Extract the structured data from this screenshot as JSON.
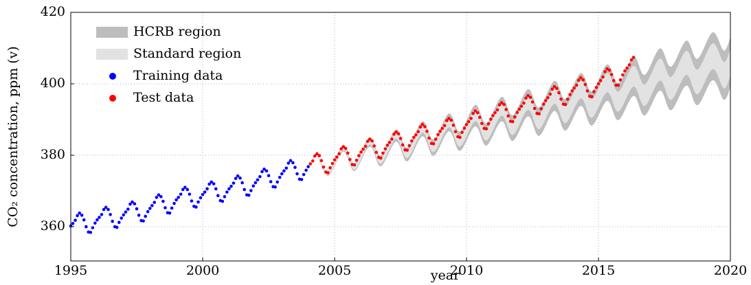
{
  "chart_data": {
    "type": "scatter",
    "xlabel": "year",
    "ylabel": "CO₂ concentration, ppm (v)",
    "xlim": [
      1995,
      2020
    ],
    "ylim": [
      350.4,
      420
    ],
    "xticks": [
      1995,
      2000,
      2005,
      2010,
      2015,
      2020
    ],
    "yticks": [
      360,
      380,
      400,
      420
    ],
    "grid": true,
    "legend": "upper left",
    "bands": [
      {
        "name": "HCRB region",
        "color": "#bdbdbd",
        "x": [
          2004.17,
          2004.33,
          2004.75,
          2005.33,
          2005.75,
          2006.33,
          2006.75,
          2007.33,
          2007.75,
          2008.33,
          2008.75,
          2009.33,
          2009.75,
          2010.33,
          2010.75,
          2011.33,
          2011.75,
          2012.33,
          2012.75,
          2013.33,
          2013.75,
          2014.33,
          2014.75,
          2015.33,
          2015.75,
          2016.33,
          2016.75,
          2017.33,
          2017.75,
          2018.33,
          2018.75,
          2019.33,
          2019.75,
          2020
        ],
        "lower": [
          377.7,
          379.7,
          374.2,
          381.0,
          375.6,
          382.4,
          376.9,
          383.8,
          378.3,
          385.3,
          379.8,
          386.7,
          381.2,
          388.1,
          382.7,
          389.5,
          384.0,
          390.9,
          385.4,
          392.4,
          386.9,
          393.8,
          388.3,
          395.2,
          389.8,
          396.6,
          391.1,
          398.1,
          392.6,
          399.5,
          394.0,
          401.0,
          395.5,
          399.0
        ],
        "upper": [
          378.5,
          380.5,
          375.4,
          382.8,
          377.6,
          385.0,
          379.9,
          387.2,
          382.1,
          389.5,
          384.4,
          391.7,
          386.6,
          394.1,
          388.9,
          396.3,
          391.2,
          398.5,
          393.4,
          400.8,
          395.7,
          403.0,
          397.9,
          405.4,
          400.2,
          407.6,
          402.5,
          409.9,
          404.8,
          412.1,
          407.0,
          414.4,
          409.3,
          413.0
        ]
      },
      {
        "name": "Standard region",
        "color": "#e2e2e2",
        "x": [
          2004.17,
          2004.33,
          2004.75,
          2005.33,
          2005.75,
          2006.33,
          2006.75,
          2007.33,
          2007.75,
          2008.33,
          2008.75,
          2009.33,
          2009.75,
          2010.33,
          2010.75,
          2011.33,
          2011.75,
          2012.33,
          2012.75,
          2013.33,
          2013.75,
          2014.33,
          2014.75,
          2015.33,
          2015.75,
          2016.33,
          2016.75,
          2017.33,
          2017.75,
          2018.33,
          2018.75,
          2019.33,
          2019.75,
          2020
        ],
        "lower": [
          377.9,
          379.8,
          374.4,
          381.4,
          376.0,
          383.0,
          377.6,
          384.6,
          379.2,
          386.3,
          380.9,
          387.8,
          382.4,
          389.5,
          384.1,
          391.1,
          385.7,
          392.7,
          387.3,
          394.4,
          389.0,
          395.9,
          390.5,
          397.6,
          392.2,
          399.2,
          393.8,
          400.9,
          395.5,
          402.5,
          397.1,
          404.1,
          398.7,
          402.3
        ],
        "upper": [
          378.3,
          380.4,
          375.2,
          382.4,
          377.2,
          384.4,
          379.2,
          386.4,
          381.2,
          388.6,
          383.4,
          390.6,
          385.4,
          392.7,
          387.5,
          394.7,
          389.5,
          396.7,
          391.5,
          398.9,
          393.7,
          400.9,
          395.7,
          403.0,
          397.8,
          405.0,
          399.8,
          407.1,
          401.9,
          409.2,
          404.0,
          411.3,
          406.1,
          409.7
        ]
      }
    ],
    "series": [
      {
        "name": "Training data",
        "color": "#0000ff",
        "x": [
          1995,
          1995.08,
          1995.17,
          1995.25,
          1995.33,
          1995.42,
          1995.5,
          1995.58,
          1995.67,
          1995.75,
          1995.83,
          1995.92,
          1996,
          1996.08,
          1996.17,
          1996.25,
          1996.33,
          1996.42,
          1996.5,
          1996.58,
          1996.67,
          1996.75,
          1996.83,
          1996.92,
          1997,
          1997.08,
          1997.17,
          1997.25,
          1997.33,
          1997.42,
          1997.5,
          1997.58,
          1997.67,
          1997.75,
          1997.83,
          1997.92,
          1998,
          1998.08,
          1998.17,
          1998.25,
          1998.33,
          1998.42,
          1998.5,
          1998.58,
          1998.67,
          1998.75,
          1998.83,
          1998.92,
          1999,
          1999.08,
          1999.17,
          1999.25,
          1999.33,
          1999.42,
          1999.5,
          1999.58,
          1999.67,
          1999.75,
          1999.83,
          1999.92,
          2000,
          2000.08,
          2000.17,
          2000.25,
          2000.33,
          2000.42,
          2000.5,
          2000.58,
          2000.67,
          2000.75,
          2000.83,
          2000.92,
          2001,
          2001.08,
          2001.17,
          2001.25,
          2001.33,
          2001.42,
          2001.5,
          2001.58,
          2001.67,
          2001.75,
          2001.83,
          2001.92,
          2002,
          2002.08,
          2002.17,
          2002.25,
          2002.33,
          2002.42,
          2002.5,
          2002.58,
          2002.67,
          2002.75,
          2002.83,
          2002.92,
          2003,
          2003.08,
          2003.17,
          2003.25,
          2003.33,
          2003.42,
          2003.5,
          2003.58,
          2003.67,
          2003.75,
          2003.83,
          2003.92,
          2004
        ],
        "values": [
          360.2,
          360.9,
          361.8,
          363.1,
          363.8,
          363.2,
          361.9,
          360.0,
          358.5,
          358.4,
          359.7,
          361.0,
          361.9,
          362.6,
          363.4,
          364.8,
          365.4,
          364.8,
          363.4,
          361.5,
          360.0,
          359.8,
          361.2,
          362.4,
          363.3,
          364.1,
          364.9,
          366.3,
          366.9,
          366.4,
          365.0,
          363.2,
          361.7,
          361.6,
          362.9,
          364.2,
          365.1,
          365.9,
          366.8,
          368.2,
          368.9,
          368.4,
          367.1,
          365.3,
          363.9,
          363.8,
          365.2,
          366.5,
          367.5,
          368.2,
          369.1,
          370.4,
          371.0,
          370.4,
          369.1,
          367.2,
          365.7,
          365.5,
          366.9,
          368.1,
          369.0,
          369.7,
          370.6,
          371.9,
          372.5,
          372.0,
          370.6,
          368.7,
          367.3,
          367.1,
          368.4,
          369.7,
          370.6,
          371.3,
          372.2,
          373.5,
          374.2,
          373.6,
          372.3,
          370.4,
          368.9,
          368.8,
          370.1,
          371.4,
          372.3,
          373.1,
          374.0,
          375.4,
          376.1,
          375.6,
          374.3,
          372.6,
          371.2,
          371.1,
          372.5,
          373.8,
          374.8,
          375.6,
          376.4,
          377.8,
          378.5,
          377.9,
          376.6,
          374.8,
          373.3,
          373.2,
          374.6,
          375.8,
          376.8
        ]
      },
      {
        "name": "Test data",
        "color": "#ff0000",
        "x": [
          2004.08,
          2004.17,
          2004.25,
          2004.33,
          2004.42,
          2004.5,
          2004.58,
          2004.67,
          2004.75,
          2004.83,
          2004.92,
          2005,
          2005.08,
          2005.17,
          2005.25,
          2005.33,
          2005.42,
          2005.5,
          2005.58,
          2005.67,
          2005.75,
          2005.83,
          2005.92,
          2006,
          2006.08,
          2006.17,
          2006.25,
          2006.33,
          2006.42,
          2006.5,
          2006.58,
          2006.67,
          2006.75,
          2006.83,
          2006.92,
          2007,
          2007.08,
          2007.17,
          2007.25,
          2007.33,
          2007.42,
          2007.5,
          2007.58,
          2007.67,
          2007.75,
          2007.83,
          2007.92,
          2008,
          2008.08,
          2008.17,
          2008.25,
          2008.33,
          2008.42,
          2008.5,
          2008.58,
          2008.67,
          2008.75,
          2008.83,
          2008.92,
          2009,
          2009.08,
          2009.17,
          2009.25,
          2009.33,
          2009.42,
          2009.5,
          2009.58,
          2009.67,
          2009.75,
          2009.83,
          2009.92,
          2010,
          2010.08,
          2010.17,
          2010.25,
          2010.33,
          2010.42,
          2010.5,
          2010.58,
          2010.67,
          2010.75,
          2010.83,
          2010.92,
          2011,
          2011.08,
          2011.17,
          2011.25,
          2011.33,
          2011.42,
          2011.5,
          2011.58,
          2011.67,
          2011.75,
          2011.83,
          2011.92,
          2012,
          2012.08,
          2012.17,
          2012.25,
          2012.33,
          2012.42,
          2012.5,
          2012.58,
          2012.67,
          2012.75,
          2012.83,
          2012.92,
          2013,
          2013.08,
          2013.17,
          2013.25,
          2013.33,
          2013.42,
          2013.5,
          2013.58,
          2013.67,
          2013.75,
          2013.83,
          2013.92,
          2014,
          2014.08,
          2014.17,
          2014.25,
          2014.33,
          2014.42,
          2014.5,
          2014.58,
          2014.67,
          2014.75,
          2014.83,
          2014.92,
          2015,
          2015.08,
          2015.17,
          2015.25,
          2015.33,
          2015.42,
          2015.5,
          2015.58,
          2015.67,
          2015.75,
          2015.83,
          2015.92,
          2016,
          2016.08,
          2016.17,
          2016.25,
          2016.33
        ],
        "values": [
          377.6,
          378.4,
          379.8,
          380.4,
          379.9,
          378.5,
          376.7,
          375.3,
          375.1,
          376.5,
          377.7,
          378.7,
          379.5,
          380.4,
          381.8,
          382.4,
          381.9,
          380.6,
          378.8,
          377.4,
          377.3,
          378.6,
          379.9,
          380.9,
          381.7,
          382.5,
          383.9,
          384.5,
          384.0,
          382.6,
          380.8,
          379.4,
          379.2,
          380.6,
          381.8,
          382.8,
          383.6,
          384.5,
          385.9,
          386.5,
          386.0,
          384.7,
          382.9,
          381.5,
          381.4,
          382.7,
          384.0,
          385.0,
          385.7,
          386.6,
          387.9,
          388.6,
          388.0,
          386.7,
          384.8,
          383.3,
          383.2,
          384.5,
          385.8,
          386.7,
          387.5,
          388.3,
          389.7,
          390.3,
          389.8,
          388.4,
          386.6,
          385.2,
          385.0,
          386.4,
          387.6,
          388.6,
          389.4,
          390.3,
          391.7,
          392.4,
          391.9,
          390.6,
          388.9,
          387.5,
          387.4,
          388.8,
          390.1,
          391.1,
          391.9,
          392.7,
          394.1,
          394.7,
          394.2,
          392.8,
          391.0,
          389.5,
          389.4,
          390.7,
          392.0,
          392.9,
          393.7,
          394.6,
          396.0,
          396.7,
          396.2,
          394.9,
          393.1,
          391.7,
          391.6,
          393.0,
          394.3,
          395.3,
          396.1,
          397.1,
          398.5,
          399.2,
          398.7,
          397.5,
          395.7,
          394.3,
          394.2,
          395.7,
          397.0,
          398.0,
          398.8,
          399.6,
          401.0,
          401.7,
          401.1,
          399.8,
          398.0,
          396.5,
          396.4,
          397.8,
          399.0,
          400.0,
          400.9,
          401.9,
          403.4,
          404.2,
          403.8,
          402.6,
          400.9,
          399.6,
          399.6,
          401.1,
          402.5,
          403.6,
          404.4,
          405.3,
          406.7,
          407.4
        ]
      }
    ]
  }
}
